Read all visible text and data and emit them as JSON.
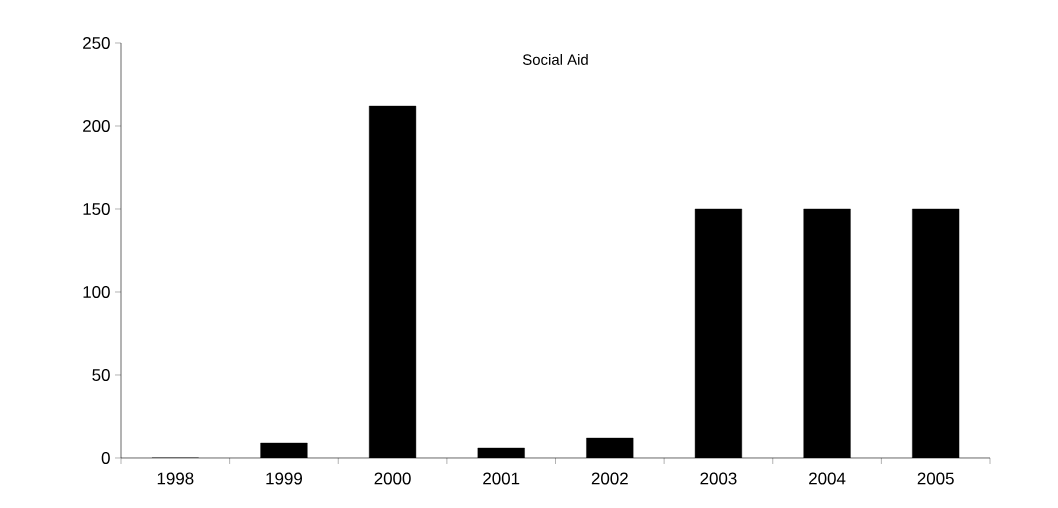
{
  "chart_data": {
    "type": "bar",
    "title": "Social Aid",
    "categories": [
      "1998",
      "1999",
      "2000",
      "2001",
      "2002",
      "2003",
      "2004",
      "2005"
    ],
    "values": [
      0,
      9,
      212,
      6,
      12,
      150,
      150,
      150
    ],
    "color": "#000000",
    "ylim": [
      0,
      250
    ],
    "yticks": [
      0,
      50,
      100,
      150,
      200,
      250
    ]
  }
}
